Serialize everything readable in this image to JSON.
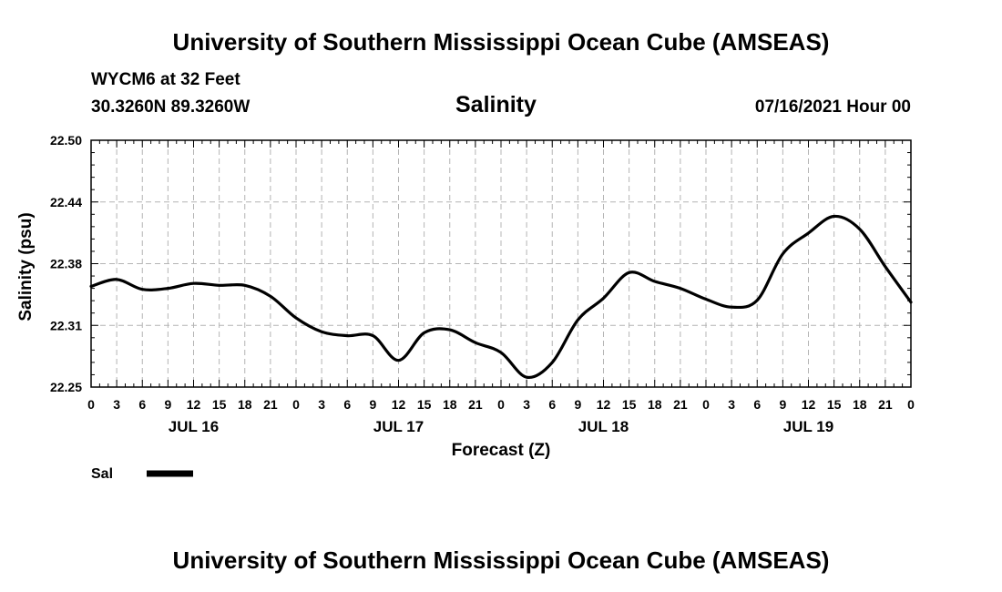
{
  "header": {
    "title": "University of Southern Mississippi Ocean Cube (AMSEAS)",
    "station": "WYCM6 at 32 Feet",
    "coords": "30.3260N  89.3260W",
    "datetime": "07/16/2021 Hour 00"
  },
  "footer": {
    "title": "University of Southern Mississippi Ocean Cube (AMSEAS)"
  },
  "chart_data": {
    "type": "line",
    "title": "Salinity",
    "xlabel": "Forecast (Z)",
    "ylabel": "Salinity (psu)",
    "ylim": [
      22.25,
      22.5
    ],
    "yticks": [
      "22.50",
      "22.44",
      "22.38",
      "22.31",
      "22.25"
    ],
    "ytick_values": [
      22.5,
      22.44,
      22.38,
      22.31,
      22.25
    ],
    "xlim": [
      0,
      96
    ],
    "xtick_labels": [
      "0",
      "3",
      "6",
      "9",
      "12",
      "15",
      "18",
      "21",
      "0",
      "3",
      "6",
      "9",
      "12",
      "15",
      "18",
      "21",
      "0",
      "3",
      "6",
      "9",
      "12",
      "15",
      "18",
      "21",
      "0",
      "3",
      "6",
      "9",
      "12",
      "15",
      "18",
      "21",
      "0"
    ],
    "day_labels": [
      {
        "label": "JUL 16",
        "hour": 12
      },
      {
        "label": "JUL 17",
        "hour": 36
      },
      {
        "label": "JUL 18",
        "hour": 60
      },
      {
        "label": "JUL 19",
        "hour": 84
      }
    ],
    "grid": true,
    "legend": [
      {
        "name": "Sal",
        "color": "#000000"
      }
    ],
    "series": [
      {
        "name": "Sal",
        "color": "#000000",
        "x": [
          0,
          3,
          6,
          9,
          12,
          15,
          18,
          21,
          24,
          27,
          30,
          33,
          36,
          39,
          42,
          45,
          48,
          51,
          54,
          57,
          60,
          63,
          66,
          69,
          72,
          75,
          78,
          81,
          84,
          87,
          90,
          93,
          96
        ],
        "values": [
          22.352,
          22.359,
          22.349,
          22.35,
          22.355,
          22.353,
          22.353,
          22.342,
          22.32,
          22.306,
          22.302,
          22.302,
          22.277,
          22.305,
          22.308,
          22.295,
          22.285,
          22.26,
          22.275,
          22.318,
          22.34,
          22.366,
          22.357,
          22.35,
          22.339,
          22.331,
          22.338,
          22.385,
          22.406,
          22.423,
          22.41,
          22.372,
          22.336
        ]
      }
    ]
  }
}
